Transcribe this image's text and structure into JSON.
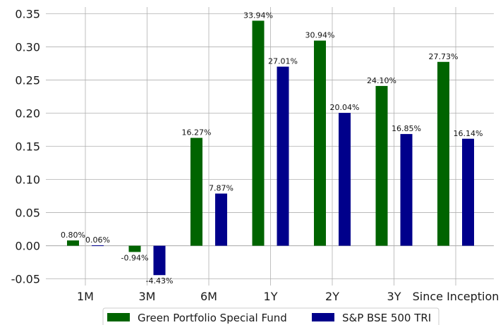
{
  "chart_data": {
    "type": "bar",
    "categories": [
      "1M",
      "3M",
      "6M",
      "1Y",
      "2Y",
      "3Y",
      "Since Inception"
    ],
    "series": [
      {
        "name": "Green Portfolio Special Fund",
        "color": "#006400",
        "values": [
          0.008,
          -0.0094,
          0.1627,
          0.3394,
          0.3094,
          0.241,
          0.2773
        ],
        "labels": [
          "0.80%",
          "-0.94%",
          "16.27%",
          "33.94%",
          "30.94%",
          "24.10%",
          "27.73%"
        ]
      },
      {
        "name": "S&P BSE 500 TRI",
        "color": "#00008B",
        "values": [
          0.0006,
          -0.0443,
          0.0787,
          0.2701,
          0.2004,
          0.1685,
          0.1614
        ],
        "labels": [
          "0.06%",
          "-4.43%",
          "7.87%",
          "27.01%",
          "20.04%",
          "16.85%",
          "16.14%"
        ]
      }
    ],
    "ylim": [
      -0.06,
      0.36
    ],
    "yticks": [
      "-0.05",
      "0.00",
      "0.05",
      "0.10",
      "0.15",
      "0.20",
      "0.25",
      "0.30",
      "0.35"
    ],
    "ytick_values": [
      -0.05,
      0,
      0.05,
      0.1,
      0.15,
      0.2,
      0.25,
      0.3,
      0.35
    ],
    "grid": true,
    "legend_position": "bottom-center"
  }
}
